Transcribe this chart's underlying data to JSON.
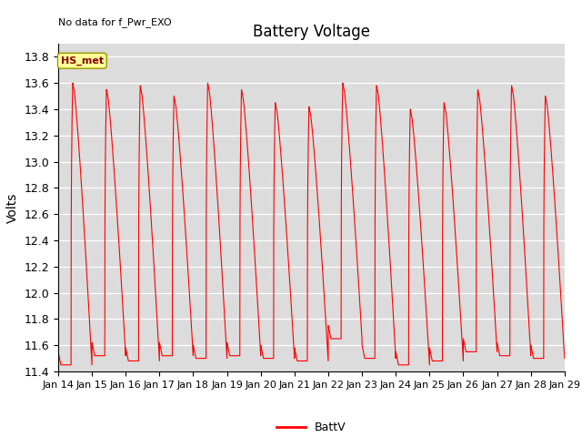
{
  "title": "Battery Voltage",
  "ylabel": "Volts",
  "top_left_text": "No data for f_Pwr_EXO",
  "legend_label": "BattV",
  "legend_color": "#FF0000",
  "line_color": "#FF0000",
  "background_color": "#DCDCDC",
  "ylim": [
    11.4,
    13.9
  ],
  "yticks": [
    11.4,
    11.6,
    11.8,
    12.0,
    12.2,
    12.4,
    12.6,
    12.8,
    13.0,
    13.2,
    13.4,
    13.6,
    13.8
  ],
  "xtick_labels": [
    "Jan 14",
    "Jan 15",
    "Jan 16",
    "Jan 17",
    "Jan 18",
    "Jan 19",
    "Jan 20",
    "Jan 21",
    "Jan 22",
    "Jan 23",
    "Jan 24",
    "Jan 25",
    "Jan 26",
    "Jan 27",
    "Jan 28",
    "Jan 29"
  ],
  "annotation_box_text": "HS_met",
  "annotation_box_color": "#FFFF99",
  "annotation_box_edge_color": "#999900",
  "figwidth": 6.4,
  "figheight": 4.8,
  "dpi": 100
}
